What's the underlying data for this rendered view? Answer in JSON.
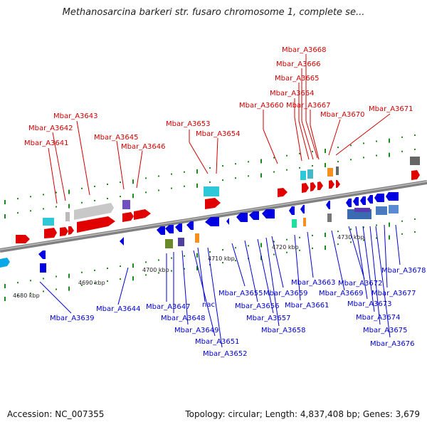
{
  "title": "Methanosarcina barkeri str. fusaro chromosome 1, complete se...",
  "footer": {
    "accession": "Accession: NC_007355",
    "summary": "Topology: circular; Length: 4,837,408 bp; Genes: 3,679"
  },
  "colors": {
    "forward": "#ff0000",
    "reverse": "#0000ff",
    "axis": "#7f7f7f",
    "tick": "#1a8a1a"
  },
  "axis_ticks": [
    "4680 kbp",
    "4690 kbp",
    "4700 kbp",
    "4710 kbp",
    "4720 kbp",
    "4730 kbp"
  ],
  "forward_labels": [
    "Mbar_A3641",
    "Mbar_A3642",
    "Mbar_A3643",
    "Mbar_A3645",
    "Mbar_A3646",
    "Mbar_A3653",
    "Mbar_A3654",
    "Mbar_A3660",
    "Mbar_A3664",
    "Mbar_A3665",
    "Mbar_A3666",
    "Mbar_A3667",
    "Mbar_A3668",
    "Mbar_A3670",
    "Mbar_A3671"
  ],
  "reverse_labels": [
    "Mbar_A3639",
    "Mbar_A3644",
    "Mbar_A3647",
    "Mbar_A3648",
    "Mbar_A3649",
    "nac",
    "Mbar_A3651",
    "Mbar_A3652",
    "Mbar_A3655",
    "Mbar_A3656",
    "Mbar_A3657",
    "Mbar_A3658",
    "Mbar_A3659",
    "Mbar_A3661",
    "Mbar_A3663",
    "Mbar_A3669",
    "Mbar_A3672",
    "Mbar_A3673",
    "Mbar_A3674",
    "Mbar_A3675",
    "Mbar_A3676",
    "Mbar_A3677",
    "Mbar_A3678"
  ]
}
